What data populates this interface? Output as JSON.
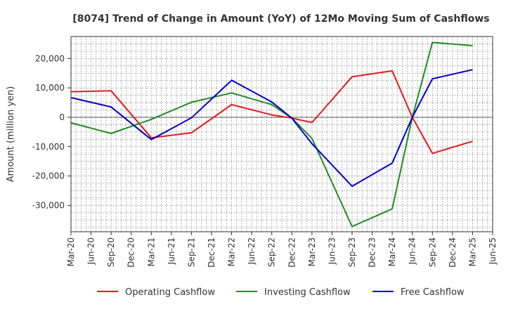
{
  "chart_data": {
    "type": "line",
    "title": "[8074]  Trend of Change in Amount (YoY) of 12Mo Moving Sum of Cashflows",
    "xlabel": "",
    "ylabel": "Amount (million yen)",
    "x_ticks": [
      "Mar-20",
      "Jun-20",
      "Sep-20",
      "Dec-20",
      "Mar-21",
      "Jun-21",
      "Sep-21",
      "Dec-21",
      "Mar-22",
      "Jun-22",
      "Sep-22",
      "Dec-22",
      "Mar-23",
      "Jun-23",
      "Sep-23",
      "Dec-23",
      "Mar-24",
      "Jun-24",
      "Sep-24",
      "Dec-24",
      "Mar-25",
      "Jun-25"
    ],
    "y_ticks": [
      20000,
      10000,
      0,
      -10000,
      -20000,
      -30000
    ],
    "y_tick_labels": [
      "20,000",
      "10,000",
      "0",
      "-10,000",
      "-20,000",
      "-30,000"
    ],
    "ylim": [
      -39000,
      27500
    ],
    "grid": true,
    "legend_position": "bottom",
    "series": [
      {
        "name": "Operating Cashflow",
        "color": "#e31a1c",
        "points": [
          {
            "x": "Mar-20",
            "y": 8700
          },
          {
            "x": "Sep-20",
            "y": 9000
          },
          {
            "x": "Mar-21",
            "y": -7000
          },
          {
            "x": "Sep-21",
            "y": -5300
          },
          {
            "x": "Mar-22",
            "y": 4300
          },
          {
            "x": "Sep-22",
            "y": 800
          },
          {
            "x": "Dec-22",
            "y": -300
          },
          {
            "x": "Mar-23",
            "y": -1800
          },
          {
            "x": "Sep-23",
            "y": 13800
          },
          {
            "x": "Mar-24",
            "y": 15800
          },
          {
            "x": "Jun-24",
            "y": 0
          },
          {
            "x": "Sep-24",
            "y": -12300
          },
          {
            "x": "Mar-25",
            "y": -8200
          }
        ]
      },
      {
        "name": "Investing Cashflow",
        "color": "#228b22",
        "points": [
          {
            "x": "Mar-20",
            "y": -1900
          },
          {
            "x": "Sep-20",
            "y": -5500
          },
          {
            "x": "Mar-21",
            "y": -700
          },
          {
            "x": "Sep-21",
            "y": 5100
          },
          {
            "x": "Mar-22",
            "y": 8300
          },
          {
            "x": "Sep-22",
            "y": 4300
          },
          {
            "x": "Dec-22",
            "y": -300
          },
          {
            "x": "Mar-23",
            "y": -7200
          },
          {
            "x": "Sep-23",
            "y": -37200
          },
          {
            "x": "Mar-24",
            "y": -31200
          },
          {
            "x": "Jun-24",
            "y": 0
          },
          {
            "x": "Sep-24",
            "y": 25500
          },
          {
            "x": "Mar-25",
            "y": 24400
          }
        ]
      },
      {
        "name": "Free Cashflow",
        "color": "#0000cd",
        "points": [
          {
            "x": "Mar-20",
            "y": 6700
          },
          {
            "x": "Sep-20",
            "y": 3500
          },
          {
            "x": "Mar-21",
            "y": -7600
          },
          {
            "x": "Sep-21",
            "y": -200
          },
          {
            "x": "Mar-22",
            "y": 12600
          },
          {
            "x": "Sep-22",
            "y": 5200
          },
          {
            "x": "Dec-22",
            "y": -300
          },
          {
            "x": "Mar-23",
            "y": -9000
          },
          {
            "x": "Sep-23",
            "y": -23500
          },
          {
            "x": "Mar-24",
            "y": -15600
          },
          {
            "x": "Jun-24",
            "y": 0
          },
          {
            "x": "Sep-24",
            "y": 13100
          },
          {
            "x": "Mar-25",
            "y": 16200
          }
        ]
      }
    ]
  }
}
